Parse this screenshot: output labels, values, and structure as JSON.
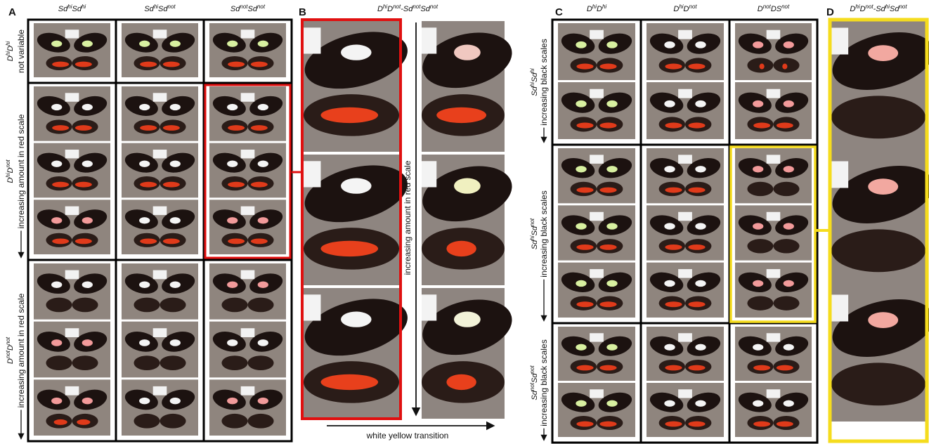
{
  "panel_a": {
    "label": "A",
    "columns": [
      [
        "Sd",
        "hi",
        "Sd",
        "hi"
      ],
      [
        "Sd",
        "hi",
        "Sd",
        "not"
      ],
      [
        "Sd",
        "not",
        "Sd",
        "not"
      ]
    ],
    "rows": [
      {
        "genotype": [
          "D",
          "hi",
          "D",
          "hi"
        ],
        "description": "not variable"
      },
      {
        "genotype": [
          "D",
          "hi",
          "D",
          "not"
        ],
        "description": "increasing amount in red scale"
      },
      {
        "genotype": [
          "D",
          "not",
          "D",
          "not"
        ],
        "description": "increasing amount in red scale"
      }
    ]
  },
  "panel_b": {
    "label": "B",
    "title": [
      "D",
      "hi",
      "D",
      "not",
      "-Sd",
      "not",
      "Sd",
      "not"
    ],
    "vertical_axis": "increasing amount in red scale",
    "horizontal_axis": "white yellow transition"
  },
  "panel_c": {
    "label": "C",
    "columns": [
      [
        "D",
        "hi",
        "D",
        "hi"
      ],
      [
        "D",
        "hi",
        "D",
        "not"
      ],
      [
        "D",
        "not",
        "DS",
        "not"
      ]
    ],
    "rows": [
      {
        "genotype": [
          "Sd",
          "hi",
          "Sd",
          "hi"
        ],
        "description": "increasing black scales"
      },
      {
        "genotype": [
          "Sd",
          "hi",
          "Sd",
          "not"
        ],
        "description": "increasing black scales"
      },
      {
        "genotype": [
          "Sd",
          "not",
          "Sd",
          "not"
        ],
        "description": "increasing black scales"
      }
    ]
  },
  "panel_d": {
    "label": "D",
    "title": [
      "D",
      "hi",
      "D",
      "not",
      "-Sd",
      "hi",
      "Sd",
      "not"
    ]
  }
}
